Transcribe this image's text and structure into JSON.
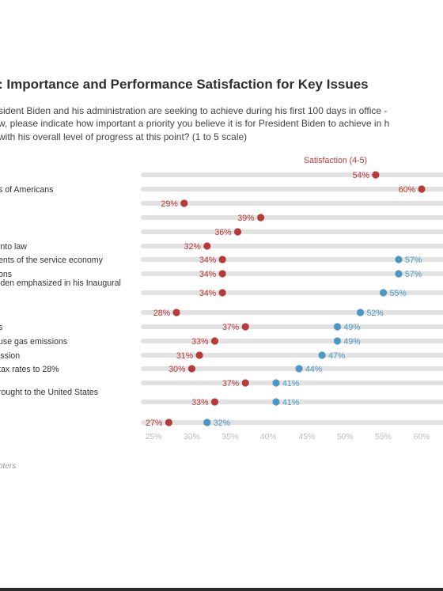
{
  "title": ": Importance and Performance Satisfaction for Key Issues",
  "subtitle_lines": [
    "sident Biden and his administration are seeking to achieve during his first 100 days in office -",
    "w, please indicate how important a priority you believe it is for President Biden to achieve in h",
    "with his overall level of progress at this point? (1 to 5 scale)"
  ],
  "legend": {
    "satisfaction": "Satisfaction (4-5)"
  },
  "source_text": "oters",
  "colors": {
    "satisfaction": "#b83a3a",
    "importance": "#4b98c4",
    "connector": "#e2e2e2"
  },
  "chart_data": {
    "type": "dumbbell",
    "xlim": [
      25,
      60
    ],
    "ticks": [
      "25%",
      "30%",
      "35%",
      "40%",
      "45%",
      "50%",
      "55%",
      "60%"
    ],
    "rows": [
      {
        "label_lines": [
          ""
        ],
        "satisfaction": 54,
        "importance": null
      },
      {
        "label_lines": [
          "s of Americans"
        ],
        "satisfaction": 60,
        "importance": null
      },
      {
        "label_lines": [
          ""
        ],
        "satisfaction": 29,
        "importance": null
      },
      {
        "label_lines": [
          ""
        ],
        "satisfaction": 39,
        "importance": null
      },
      {
        "label_lines": [
          ""
        ],
        "satisfaction": 36,
        "importance": null
      },
      {
        "label_lines": [
          "into law"
        ],
        "satisfaction": 32,
        "importance": null
      },
      {
        "label_lines": [
          "ents of the service economy"
        ],
        "satisfaction": 34,
        "importance": 57
      },
      {
        "label_lines": [
          "ons"
        ],
        "satisfaction": 34,
        "importance": 57
      },
      {
        "label_lines": [
          "iden emphasized in his Inaugural",
          ""
        ],
        "satisfaction": 34,
        "importance": 55
      },
      {
        "label_lines": [
          ""
        ],
        "satisfaction": 28,
        "importance": 52
      },
      {
        "label_lines": [
          "s"
        ],
        "satisfaction": 37,
        "importance": 49
      },
      {
        "label_lines": [
          "use gas emissions"
        ],
        "satisfaction": 33,
        "importance": 49
      },
      {
        "label_lines": [
          "ission"
        ],
        "satisfaction": 31,
        "importance": 47
      },
      {
        "label_lines": [
          "tax rates to 28%"
        ],
        "satisfaction": 30,
        "importance": 44
      },
      {
        "label_lines": [
          ""
        ],
        "satisfaction": 37,
        "importance": 41
      },
      {
        "label_lines": [
          "rought to the United States",
          ""
        ],
        "satisfaction": 33,
        "importance": 41
      },
      {
        "label_lines": [
          ""
        ],
        "satisfaction": 27,
        "importance": 32
      }
    ]
  }
}
